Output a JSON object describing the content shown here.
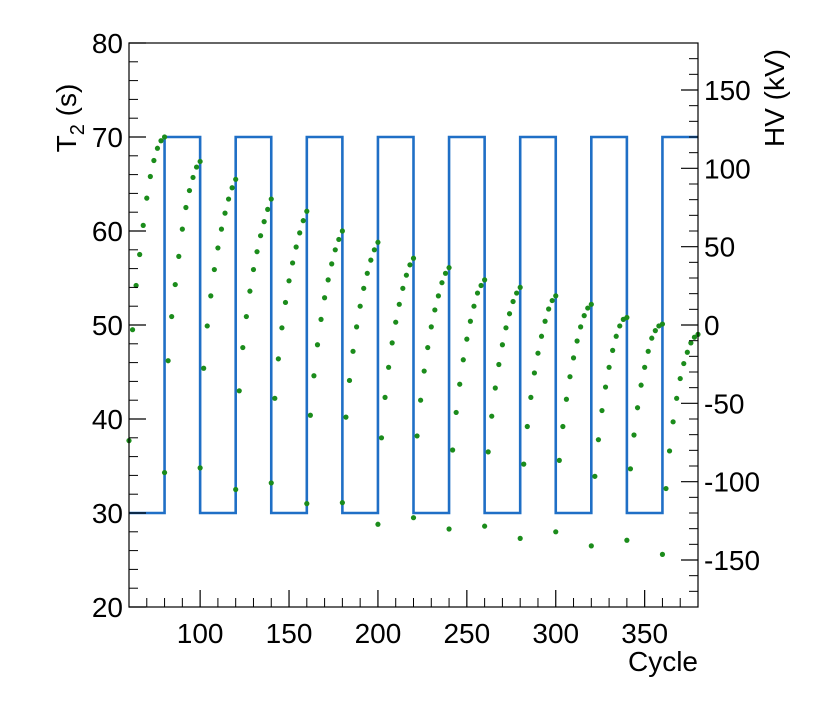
{
  "chart_data": {
    "type": "scatter",
    "title": "",
    "xlabel": "Cycle",
    "ylabel_main": "T",
    "ylabel_sub": "2",
    "ylabel_unit": " (s)",
    "y2label": "HV (kV)",
    "xlim": [
      60,
      380
    ],
    "ylim": [
      20,
      80
    ],
    "y2lim": [
      -180,
      180
    ],
    "xticks": [
      100,
      150,
      200,
      250,
      300,
      350
    ],
    "yticks": [
      20,
      30,
      40,
      50,
      60,
      70,
      80
    ],
    "y2ticks": [
      -150,
      -100,
      -50,
      0,
      50,
      100,
      150
    ],
    "grid": false,
    "colors": {
      "t2": "#1b8c1b",
      "hv": "#1f6fc6"
    },
    "series": [
      {
        "kind": "points",
        "axis": "left",
        "segments": [
          {
            "x": [
              60,
              62,
              64,
              66,
              68,
              70,
              72,
              74,
              76,
              78,
              80
            ],
            "y": [
              37.7,
              49.5,
              54.2,
              57.5,
              60.6,
              63.5,
              65.8,
              67.5,
              68.8,
              69.6,
              70.0
            ]
          },
          {
            "x": [
              80,
              82,
              84,
              86,
              88,
              90,
              92,
              94,
              96,
              98,
              100
            ],
            "y": [
              34.3,
              46.2,
              50.9,
              54.3,
              57.3,
              60.2,
              62.5,
              64.3,
              65.7,
              66.8,
              67.4
            ]
          },
          {
            "x": [
              100,
              102,
              104,
              106,
              108,
              110,
              112,
              114,
              116,
              118,
              120
            ],
            "y": [
              34.8,
              45.4,
              49.9,
              53.1,
              55.9,
              58.2,
              60.2,
              61.9,
              63.4,
              64.6,
              65.5
            ]
          },
          {
            "x": [
              120,
              122,
              124,
              126,
              128,
              130,
              132,
              134,
              136,
              138,
              140
            ],
            "y": [
              32.5,
              43.0,
              47.6,
              50.9,
              53.6,
              55.9,
              57.8,
              59.5,
              61.0,
              62.3,
              63.4
            ]
          },
          {
            "x": [
              140,
              142,
              144,
              146,
              148,
              150,
              152,
              154,
              156,
              158,
              160
            ],
            "y": [
              33.2,
              42.2,
              46.4,
              49.7,
              52.4,
              54.7,
              56.6,
              58.3,
              59.8,
              61.1,
              62.1
            ]
          },
          {
            "x": [
              160,
              162,
              164,
              166,
              168,
              170,
              172,
              174,
              176,
              178,
              180
            ],
            "y": [
              31.0,
              40.4,
              44.6,
              47.9,
              50.6,
              52.9,
              54.8,
              56.5,
              58.0,
              59.1,
              60.0
            ]
          },
          {
            "x": [
              180,
              182,
              184,
              186,
              188,
              190,
              192,
              194,
              196,
              198,
              200
            ],
            "y": [
              31.1,
              40.2,
              44.1,
              47.2,
              49.8,
              52.0,
              53.9,
              55.5,
              56.9,
              58.0,
              58.8
            ]
          },
          {
            "x": [
              200,
              202,
              204,
              206,
              208,
              210,
              212,
              214,
              216,
              218,
              220
            ],
            "y": [
              28.8,
              38.0,
              42.3,
              45.5,
              48.1,
              50.3,
              52.2,
              53.9,
              55.3,
              56.4,
              57.1
            ]
          },
          {
            "x": [
              220,
              222,
              224,
              226,
              228,
              230,
              232,
              234,
              236,
              238,
              240
            ],
            "y": [
              29.5,
              38.2,
              42.0,
              45.1,
              47.6,
              49.8,
              51.6,
              53.1,
              54.5,
              55.5,
              56.1
            ]
          },
          {
            "x": [
              240,
              242,
              244,
              246,
              248,
              250,
              252,
              254,
              256,
              258,
              260
            ],
            "y": [
              28.3,
              36.7,
              40.7,
              43.7,
              46.3,
              48.5,
              50.4,
              52.0,
              53.4,
              54.2,
              54.8
            ]
          },
          {
            "x": [
              260,
              262,
              264,
              266,
              268,
              270,
              272,
              274,
              276,
              278,
              280
            ],
            "y": [
              28.6,
              36.5,
              40.3,
              43.3,
              45.8,
              47.9,
              49.7,
              51.2,
              52.5,
              53.4,
              54.0
            ]
          },
          {
            "x": [
              280,
              282,
              284,
              286,
              288,
              290,
              292,
              294,
              296,
              298,
              300
            ],
            "y": [
              27.3,
              35.2,
              39.2,
              42.3,
              44.9,
              47.0,
              48.8,
              50.4,
              51.7,
              52.6,
              53.1
            ]
          },
          {
            "x": [
              300,
              302,
              304,
              306,
              308,
              310,
              312,
              314,
              316,
              318,
              320
            ],
            "y": [
              28.0,
              35.6,
              39.2,
              42.1,
              44.5,
              46.5,
              48.3,
              49.8,
              51.0,
              51.8,
              52.2
            ]
          },
          {
            "x": [
              320,
              322,
              324,
              326,
              328,
              330,
              332,
              334,
              336,
              338,
              340
            ],
            "y": [
              26.5,
              33.9,
              37.8,
              40.9,
              43.4,
              45.5,
              47.3,
              48.8,
              49.9,
              50.6,
              50.8
            ]
          },
          {
            "x": [
              340,
              342,
              344,
              346,
              348,
              350,
              352,
              354,
              356,
              358,
              360
            ],
            "y": [
              27.1,
              34.7,
              38.3,
              41.2,
              43.6,
              45.5,
              47.2,
              48.6,
              49.4,
              49.9,
              50.1
            ]
          },
          {
            "x": [
              360,
              362,
              364,
              366,
              368,
              370,
              372,
              374,
              376,
              378,
              380
            ],
            "y": [
              25.6,
              32.6,
              36.6,
              39.7,
              42.2,
              44.3,
              45.9,
              47.1,
              48.1,
              48.7,
              49.0
            ]
          }
        ]
      },
      {
        "kind": "step",
        "axis": "right",
        "x": [
          60,
          80,
          80,
          100,
          100,
          120,
          120,
          140,
          140,
          160,
          160,
          180,
          180,
          200,
          200,
          220,
          220,
          240,
          240,
          260,
          260,
          280,
          280,
          300,
          300,
          320,
          320,
          340,
          340,
          360,
          360,
          380
        ],
        "y": [
          -120,
          -120,
          120,
          120,
          -120,
          -120,
          120,
          120,
          -120,
          -120,
          120,
          120,
          -120,
          -120,
          120,
          120,
          -120,
          -120,
          120,
          120,
          -120,
          -120,
          120,
          120,
          -120,
          -120,
          120,
          120,
          -120,
          -120,
          120,
          120
        ]
      }
    ]
  }
}
